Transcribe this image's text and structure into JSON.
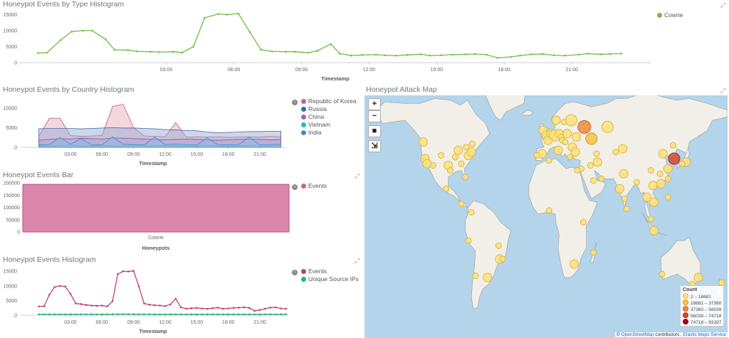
{
  "panels": {
    "type_histogram": {
      "title": "Honeypot Events by Type Histogram",
      "xlabel": "Timestamp",
      "legend": [
        "Cowrie"
      ],
      "legend_color": "#6abf40"
    },
    "country_histogram": {
      "title": "Honeypot Events by Country Histogram",
      "xlabel": "Timestamp",
      "legend": [
        "Republic of Korea",
        "Russia",
        "China",
        "Vietnam",
        "India"
      ],
      "legend_colors": [
        "#d36086",
        "#3f6aa9",
        "#9467bd",
        "#17becf",
        "#3b8dd2"
      ]
    },
    "events_bar": {
      "title": "Honeypot Events Bar",
      "xlabel": "Honeypots",
      "category": "Cowrie",
      "legend": [
        "Events"
      ],
      "legend_color": "#d36086"
    },
    "events_histogram": {
      "title": "Honeypot Events Histogram",
      "xlabel": "Timestamp",
      "legend": [
        "Events",
        "Unique Source IPs"
      ],
      "legend_colors": [
        "#c43c7a",
        "#22b573"
      ]
    },
    "attack_map": {
      "title": "Honeypot Attack Map",
      "controls": [
        "+",
        "−",
        "■",
        "⇲"
      ],
      "count_title": "Count",
      "count_ranges": [
        "2 – 18681",
        "18681 – 37360",
        "37360 – 56039",
        "56039 – 74718",
        "74718 – 93397"
      ],
      "count_colors": [
        "#ffe27a",
        "#f7c146",
        "#f08a3c",
        "#d9472f",
        "#b3001e"
      ],
      "attribution_prefix": "©",
      "attribution_osm": "OpenStreetMap",
      "attribution_mid": " contributors ,",
      "attribution_ems": "Elastic Maps Service"
    }
  },
  "chart_data": [
    {
      "type": "line",
      "title": "Honeypot Events by Type Histogram",
      "xlabel": "Timestamp",
      "ylabel": "",
      "ylim": [
        0,
        16000
      ],
      "yticks": [
        0,
        5000,
        10000,
        15000
      ],
      "xticks": [
        "03:00",
        "06:00",
        "09:00",
        "12:00",
        "15:00",
        "18:00",
        "21:00"
      ],
      "x_hours": [
        -2.7,
        -2.3,
        -1.7,
        -1.2,
        -0.7,
        -0.3,
        0.3,
        0.7,
        1.3,
        1.7,
        2.3,
        2.7,
        3.3,
        3.7,
        4.2,
        4.7,
        5.3,
        5.7,
        6.2,
        6.7,
        7.2,
        7.7,
        8.3,
        8.7,
        9.3,
        9.7,
        10.3,
        10.7,
        11.2,
        11.7,
        12.3,
        12.7,
        13.2,
        13.7,
        14.3,
        14.7,
        15.2,
        15.7,
        16.3,
        16.7,
        17.2,
        17.7,
        18.3,
        18.7,
        19.2,
        19.7,
        20.2,
        20.7,
        21.3,
        21.7,
        22.3,
        22.7,
        23.2
      ],
      "series": [
        {
          "name": "Cowrie",
          "values": [
            3000,
            3100,
            7000,
            9700,
            10000,
            10000,
            7300,
            4000,
            3900,
            3500,
            3400,
            3300,
            3400,
            3100,
            5000,
            14000,
            15200,
            15000,
            15300,
            9600,
            4000,
            3500,
            3400,
            3400,
            3100,
            3700,
            5800,
            2800,
            2200,
            2400,
            2500,
            2300,
            2200,
            2400,
            2600,
            2200,
            2300,
            2500,
            2600,
            2700,
            2500,
            1500,
            1800,
            2200,
            2600,
            2700,
            2300,
            2200,
            2500,
            2800,
            2600,
            2700,
            2800
          ]
        }
      ]
    },
    {
      "type": "area",
      "title": "Honeypot Events by Country Histogram",
      "xlabel": "Timestamp",
      "ylim": [
        0,
        12500
      ],
      "yticks": [
        0,
        5000,
        10000
      ],
      "xticks": [
        "03:00",
        "06:00",
        "09:00",
        "12:00",
        "15:00",
        "18:00",
        "21:00"
      ],
      "x_hours": [
        0,
        1,
        2,
        3,
        4,
        5,
        6,
        7,
        8,
        9,
        10,
        11,
        12,
        13,
        14,
        15,
        16,
        17,
        18,
        19,
        20,
        21,
        22,
        23
      ],
      "series": [
        {
          "name": "Republic of Korea",
          "values": [
            2800,
            7400,
            7400,
            3000,
            2800,
            2900,
            3000,
            10400,
            11000,
            5000,
            2900,
            2800,
            2700,
            6300,
            2600,
            2700,
            2600,
            2700,
            2500,
            2600,
            2700,
            2600,
            2800,
            2700
          ]
        },
        {
          "name": "Russia",
          "values": [
            4700,
            4800,
            4800,
            4800,
            4700,
            4800,
            4900,
            5000,
            4900,
            4900,
            4800,
            4700,
            4500,
            4400,
            4300,
            4200,
            3900,
            3700,
            3800,
            3900,
            4000,
            4000,
            4100,
            4100
          ]
        },
        {
          "name": "China",
          "values": [
            1800,
            2000,
            2200,
            2100,
            2300,
            2200,
            2100,
            2400,
            2300,
            2200,
            2100,
            2000,
            1900,
            2000,
            2100,
            2000,
            1900,
            1800,
            1900,
            2000,
            2100,
            2000,
            1900,
            2000
          ]
        },
        {
          "name": "Vietnam",
          "values": [
            400,
            300,
            500,
            600,
            300,
            400,
            500,
            300,
            400,
            600,
            300,
            400,
            500,
            300,
            400,
            300,
            500,
            400,
            300,
            400,
            500,
            300,
            400,
            500
          ]
        },
        {
          "name": "India",
          "values": [
            600,
            700,
            2500,
            800,
            2200,
            700,
            600,
            2700,
            800,
            700,
            600,
            2600,
            700,
            800,
            700,
            600,
            2400,
            700,
            600,
            700,
            2600,
            600,
            700,
            800
          ]
        }
      ]
    },
    {
      "type": "bar",
      "title": "Honeypot Events Bar",
      "xlabel": "Honeypots",
      "ylim": [
        0,
        200000
      ],
      "yticks": [
        0,
        50000,
        100000,
        150000,
        200000
      ],
      "categories": [
        "Cowrie"
      ],
      "series": [
        {
          "name": "Events",
          "values": [
            194000
          ]
        }
      ]
    },
    {
      "type": "line",
      "title": "Honeypot Events Histogram",
      "xlabel": "Timestamp",
      "ylim": [
        0,
        16000
      ],
      "yticks": [
        0,
        5000,
        10000,
        15000
      ],
      "xticks": [
        "03:00",
        "06:00",
        "09:00",
        "12:00",
        "15:00",
        "18:00",
        "21:00"
      ],
      "x_hours": [
        0.0,
        0.5,
        1.0,
        1.5,
        2.0,
        2.5,
        3.0,
        3.5,
        4.0,
        4.5,
        5.0,
        5.5,
        6.0,
        6.5,
        7.0,
        7.5,
        8.0,
        8.5,
        9.0,
        9.5,
        10.0,
        10.5,
        11.0,
        11.5,
        12.0,
        12.5,
        13.0,
        13.5,
        14.0,
        14.5,
        15.0,
        15.5,
        16.0,
        16.5,
        17.0,
        17.5,
        18.0,
        18.5,
        19.0,
        19.5,
        20.0,
        20.5,
        21.0,
        21.5,
        22.0,
        22.5,
        23.0,
        23.5
      ],
      "series": [
        {
          "name": "Events",
          "values": [
            3000,
            3100,
            7000,
            9600,
            10000,
            9800,
            7300,
            4000,
            3800,
            3500,
            3300,
            3200,
            3300,
            3000,
            4800,
            14000,
            15000,
            14900,
            15100,
            9800,
            4000,
            3600,
            3400,
            3300,
            3100,
            3700,
            5600,
            2700,
            2200,
            2400,
            2500,
            2300,
            2200,
            2400,
            2600,
            2200,
            2300,
            2500,
            2600,
            2700,
            2500,
            1500,
            1800,
            2200,
            2600,
            2700,
            2300,
            2200
          ]
        },
        {
          "name": "Unique Source IPs",
          "values": [
            300,
            320,
            300,
            310,
            330,
            320,
            310,
            300,
            320,
            330,
            310,
            300,
            320,
            330,
            340,
            360,
            380,
            370,
            360,
            350,
            340,
            330,
            320,
            310,
            300,
            320,
            330,
            310,
            300,
            320,
            310,
            300,
            320,
            310,
            300,
            330,
            320,
            310,
            300,
            320,
            310,
            300,
            320,
            330,
            310,
            300,
            320,
            310
          ]
        }
      ]
    }
  ],
  "map_points": [
    {
      "lon": -122,
      "lat": 47,
      "size": 2,
      "level": 1
    },
    {
      "lon": -120,
      "lat": 37,
      "size": 2,
      "level": 1
    },
    {
      "lon": -118,
      "lat": 34,
      "size": 2,
      "level": 1
    },
    {
      "lon": -112,
      "lat": 33,
      "size": 1,
      "level": 1
    },
    {
      "lon": -104,
      "lat": 39,
      "size": 1,
      "level": 1
    },
    {
      "lon": -97,
      "lat": 33,
      "size": 2,
      "level": 1
    },
    {
      "lon": -95,
      "lat": 30,
      "size": 1,
      "level": 1
    },
    {
      "lon": -90,
      "lat": 38,
      "size": 1,
      "level": 1
    },
    {
      "lon": -87,
      "lat": 42,
      "size": 2,
      "level": 1
    },
    {
      "lon": -84,
      "lat": 34,
      "size": 1,
      "level": 1
    },
    {
      "lon": -80,
      "lat": 26,
      "size": 1,
      "level": 1
    },
    {
      "lon": -77,
      "lat": 39,
      "size": 2,
      "level": 1
    },
    {
      "lon": -74,
      "lat": 41,
      "size": 2,
      "level": 1
    },
    {
      "lon": -79,
      "lat": 44,
      "size": 1,
      "level": 1
    },
    {
      "lon": -73,
      "lat": 46,
      "size": 1,
      "level": 1
    },
    {
      "lon": -99,
      "lat": 19,
      "size": 1,
      "level": 1
    },
    {
      "lon": -84,
      "lat": 10,
      "size": 1,
      "level": 1
    },
    {
      "lon": -74,
      "lat": 5,
      "size": 1,
      "level": 1
    },
    {
      "lon": -77,
      "lat": -12,
      "size": 1,
      "level": 1
    },
    {
      "lon": -47,
      "lat": -15,
      "size": 1,
      "level": 1
    },
    {
      "lon": -46,
      "lat": -23,
      "size": 2,
      "level": 1
    },
    {
      "lon": -43,
      "lat": -23,
      "size": 1,
      "level": 1
    },
    {
      "lon": -58,
      "lat": -34,
      "size": 2,
      "level": 1
    },
    {
      "lon": -70,
      "lat": -33,
      "size": 1,
      "level": 1
    },
    {
      "lon": -3,
      "lat": 54,
      "size": 2,
      "level": 1
    },
    {
      "lon": 0,
      "lat": 51,
      "size": 2,
      "level": 1
    },
    {
      "lon": 2,
      "lat": 48,
      "size": 2,
      "level": 1
    },
    {
      "lon": 5,
      "lat": 52,
      "size": 2,
      "level": 1
    },
    {
      "lon": 9,
      "lat": 51,
      "size": 3,
      "level": 1
    },
    {
      "lon": 13,
      "lat": 52,
      "size": 2,
      "level": 1
    },
    {
      "lon": 10,
      "lat": 60,
      "size": 2,
      "level": 1
    },
    {
      "lon": 18,
      "lat": 59,
      "size": 1,
      "level": 1
    },
    {
      "lon": 25,
      "lat": 60,
      "size": 3,
      "level": 1
    },
    {
      "lon": 21,
      "lat": 52,
      "size": 2,
      "level": 1
    },
    {
      "lon": 15,
      "lat": 50,
      "size": 1,
      "level": 1
    },
    {
      "lon": 16,
      "lat": 48,
      "size": 1,
      "level": 1
    },
    {
      "lon": 19,
      "lat": 47,
      "size": 1,
      "level": 1
    },
    {
      "lon": 26,
      "lat": 44,
      "size": 2,
      "level": 1
    },
    {
      "lon": 30,
      "lat": 50,
      "size": 2,
      "level": 1
    },
    {
      "lon": 24,
      "lat": 38,
      "size": 1,
      "level": 1
    },
    {
      "lon": 12,
      "lat": 42,
      "size": 2,
      "level": 1
    },
    {
      "lon": -4,
      "lat": 40,
      "size": 2,
      "level": 1
    },
    {
      "lon": -9,
      "lat": 39,
      "size": 1,
      "level": 1
    },
    {
      "lon": 29,
      "lat": 41,
      "size": 2,
      "level": 1
    },
    {
      "lon": 38,
      "lat": 56,
      "size": 4,
      "level": 3
    },
    {
      "lon": 45,
      "lat": 49,
      "size": 3,
      "level": 2
    },
    {
      "lon": 50,
      "lat": 40,
      "size": 1,
      "level": 1
    },
    {
      "lon": 61,
      "lat": 56,
      "size": 3,
      "level": 1
    },
    {
      "lon": 35,
      "lat": 31,
      "size": 1,
      "level": 1
    },
    {
      "lon": 44,
      "lat": 33,
      "size": 1,
      "level": 1
    },
    {
      "lon": 51,
      "lat": 35,
      "size": 2,
      "level": 1
    },
    {
      "lon": 47,
      "lat": 24,
      "size": 1,
      "level": 1
    },
    {
      "lon": 55,
      "lat": 25,
      "size": 1,
      "level": 1
    },
    {
      "lon": 31,
      "lat": 30,
      "size": 1,
      "level": 1
    },
    {
      "lon": 3,
      "lat": 36,
      "size": 1,
      "level": 1
    },
    {
      "lon": 3,
      "lat": 6,
      "size": 1,
      "level": 1
    },
    {
      "lon": 37,
      "lat": -1,
      "size": 1,
      "level": 1
    },
    {
      "lon": 28,
      "lat": -26,
      "size": 2,
      "level": 1
    },
    {
      "lon": 47,
      "lat": -19,
      "size": 1,
      "level": 1
    },
    {
      "lon": 77,
      "lat": 28,
      "size": 2,
      "level": 1
    },
    {
      "lon": 73,
      "lat": 19,
      "size": 2,
      "level": 1
    },
    {
      "lon": 78,
      "lat": 13,
      "size": 1,
      "level": 1
    },
    {
      "lon": 80,
      "lat": 7,
      "size": 1,
      "level": 1
    },
    {
      "lon": 90,
      "lat": 23,
      "size": 1,
      "level": 1
    },
    {
      "lon": 69,
      "lat": 41,
      "size": 1,
      "level": 1
    },
    {
      "lon": 76,
      "lat": 43,
      "size": 2,
      "level": 1
    },
    {
      "lon": 116,
      "lat": 40,
      "size": 2,
      "level": 1
    },
    {
      "lon": 121,
      "lat": 31,
      "size": 2,
      "level": 1
    },
    {
      "lon": 114,
      "lat": 22,
      "size": 2,
      "level": 1
    },
    {
      "lon": 113,
      "lat": 28,
      "size": 1,
      "level": 1
    },
    {
      "lon": 104,
      "lat": 30,
      "size": 1,
      "level": 1
    },
    {
      "lon": 126,
      "lat": 45,
      "size": 1,
      "level": 1
    },
    {
      "lon": 127,
      "lat": 37,
      "size": 3,
      "level": 4
    },
    {
      "lon": 139,
      "lat": 35,
      "size": 2,
      "level": 1
    },
    {
      "lon": 135,
      "lat": 34,
      "size": 1,
      "level": 1
    },
    {
      "lon": 121,
      "lat": 25,
      "size": 1,
      "level": 1
    },
    {
      "lon": 106,
      "lat": 21,
      "size": 2,
      "level": 1
    },
    {
      "lon": 107,
      "lat": 11,
      "size": 2,
      "level": 1
    },
    {
      "lon": 100,
      "lat": 14,
      "size": 2,
      "level": 1
    },
    {
      "lon": 104,
      "lat": 1,
      "size": 1,
      "level": 1
    },
    {
      "lon": 107,
      "lat": -6,
      "size": 2,
      "level": 1
    },
    {
      "lon": 121,
      "lat": 14,
      "size": 1,
      "level": 1
    },
    {
      "lon": 151,
      "lat": -34,
      "size": 2,
      "level": 1
    },
    {
      "lon": 145,
      "lat": -38,
      "size": 1,
      "level": 1
    },
    {
      "lon": 115,
      "lat": -32,
      "size": 1,
      "level": 1
    },
    {
      "lon": 174,
      "lat": -37,
      "size": 1,
      "level": 1
    }
  ]
}
